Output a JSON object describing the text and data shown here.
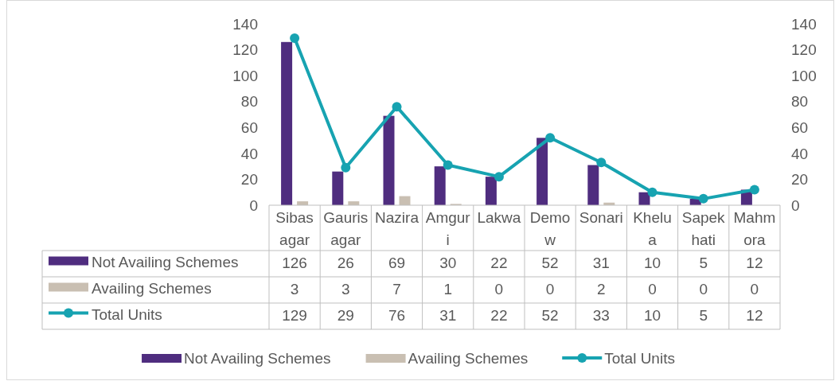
{
  "chart_data": {
    "type": "bar",
    "categories": [
      "Sibasagar",
      "Gaurisagar",
      "Nazira",
      "Amguri",
      "Lakwa",
      "Demow",
      "Sonari",
      "Khelua",
      "Sapekhati",
      "Mahmora"
    ],
    "series": [
      {
        "name": "Not Availing Schemes",
        "color": "#4f2d7f",
        "values": [
          126,
          26,
          69,
          30,
          22,
          52,
          31,
          10,
          5,
          12
        ]
      },
      {
        "name": "Availing Schemes",
        "color": "#c9bfb2",
        "values": [
          3,
          3,
          7,
          1,
          0,
          0,
          2,
          0,
          0,
          0
        ]
      },
      {
        "name": "Total Units",
        "type": "line",
        "color": "#17a3b1",
        "marker": "circle",
        "values": [
          129,
          29,
          76,
          31,
          22,
          52,
          33,
          10,
          5,
          12
        ]
      }
    ],
    "ylim": [
      0,
      140
    ],
    "yticks": [
      0,
      20,
      40,
      60,
      80,
      100,
      120,
      140
    ],
    "y2lim": [
      0,
      140
    ],
    "y2ticks": [
      0,
      20,
      40,
      60,
      80,
      100,
      120,
      140
    ],
    "data_labels": true,
    "legend": "bottom",
    "grid": false
  }
}
